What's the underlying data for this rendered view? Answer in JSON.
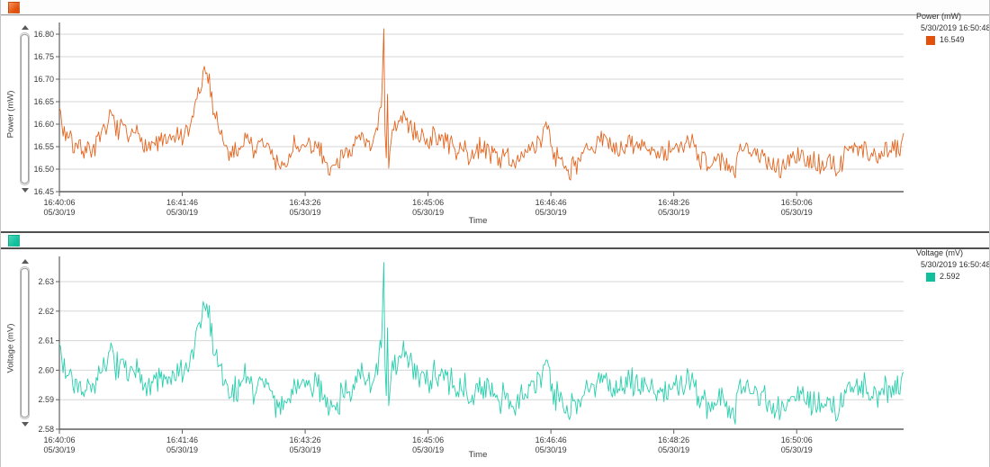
{
  "panels": [
    {
      "name": "power",
      "y_axis_title": "Power (mW)",
      "x_axis_title": "Time",
      "icon_gradient": "linear-gradient(135deg,#f5935d 0%,#e2500b 70%)",
      "legend": {
        "title": "Power (mW)",
        "timestamp": "5/30/2019 16:50:48",
        "value": "16.549",
        "swatch": "#e2500b"
      }
    },
    {
      "name": "voltage",
      "y_axis_title": "Voltage (mV)",
      "x_axis_title": "Time",
      "icon_gradient": "linear-gradient(135deg,#4cd9b8 0%,#10bf9c 70%)",
      "legend": {
        "title": "Voltage (mV)",
        "timestamp": "5/30/2019 16:50:48",
        "value": "2.592",
        "swatch": "#12bf9d"
      }
    }
  ],
  "chart_data": [
    {
      "type": "line",
      "series_name": "Power (mW)",
      "line_color": "#e4641e",
      "legend_value_at_cursor": 16.549,
      "cursor_timestamp": "5/30/2019 16:50:48",
      "duration_s": 687,
      "grid": "horizontal",
      "x_axis": {
        "label": "Time",
        "tick_interval_s": 100,
        "ticks": [
          {
            "time": "16:40:06",
            "date": "05/30/19"
          },
          {
            "time": "16:41:46",
            "date": "05/30/19"
          },
          {
            "time": "16:43:26",
            "date": "05/30/19"
          },
          {
            "time": "16:45:06",
            "date": "05/30/19"
          },
          {
            "time": "16:46:46",
            "date": "05/30/19"
          },
          {
            "time": "16:48:26",
            "date": "05/30/19"
          },
          {
            "time": "16:50:06",
            "date": "05/30/19"
          }
        ]
      },
      "y_axis": {
        "label": "Power (mW)",
        "min": 16.45,
        "max": 16.8225,
        "ticks": [
          "16.45",
          "16.50",
          "16.55",
          "16.60",
          "16.65",
          "16.70",
          "16.75",
          "16.80"
        ]
      },
      "signal": {
        "seed": 7,
        "baseline": 16.56,
        "fast_noise": 0.022,
        "wander_step": 0.01,
        "wander_phi": 0.95,
        "wander_max": 0.034,
        "clip": [
          16.457,
          16.812
        ],
        "envelope_points": [
          [
            0,
            16.665
          ],
          [
            1,
            16.62
          ],
          [
            3,
            16.585
          ],
          [
            10,
            16.575
          ],
          [
            20,
            16.565
          ],
          [
            35,
            16.585
          ],
          [
            45,
            16.6
          ],
          [
            48,
            16.572
          ],
          [
            58,
            16.56
          ],
          [
            68,
            16.572
          ],
          [
            80,
            16.555
          ],
          [
            92,
            16.565
          ],
          [
            100,
            16.56
          ],
          [
            105,
            16.572
          ],
          [
            110,
            16.628
          ],
          [
            114,
            16.668
          ],
          [
            119,
            16.703
          ],
          [
            123,
            16.648
          ],
          [
            127,
            16.598
          ],
          [
            133,
            16.548
          ],
          [
            140,
            16.532
          ],
          [
            150,
            16.558
          ],
          [
            160,
            16.552
          ],
          [
            170,
            16.542
          ],
          [
            180,
            16.508
          ],
          [
            184,
            16.49
          ],
          [
            191,
            16.548
          ],
          [
            200,
            16.542
          ],
          [
            210,
            16.528
          ],
          [
            220,
            16.502
          ],
          [
            226,
            16.522
          ],
          [
            234,
            16.565
          ],
          [
            244,
            16.568
          ],
          [
            254,
            16.572
          ],
          [
            259,
            16.588
          ],
          [
            262,
            16.63
          ],
          [
            263,
            16.72
          ],
          [
            264,
            16.81
          ],
          [
            265,
            16.58
          ],
          [
            266,
            16.5
          ],
          [
            267,
            16.64
          ],
          [
            268,
            16.47
          ],
          [
            269,
            16.52
          ],
          [
            270,
            16.56
          ],
          [
            276,
            16.582
          ],
          [
            285,
            16.595
          ],
          [
            295,
            16.588
          ],
          [
            305,
            16.572
          ],
          [
            315,
            16.552
          ],
          [
            325,
            16.545
          ],
          [
            335,
            16.532
          ],
          [
            345,
            16.54
          ],
          [
            355,
            16.53
          ],
          [
            365,
            16.525
          ],
          [
            378,
            16.532
          ],
          [
            390,
            16.552
          ],
          [
            397,
            16.608
          ],
          [
            403,
            16.548
          ],
          [
            415,
            16.53
          ],
          [
            430,
            16.545
          ],
          [
            445,
            16.552
          ],
          [
            460,
            16.538
          ],
          [
            475,
            16.545
          ],
          [
            490,
            16.528
          ],
          [
            505,
            16.518
          ],
          [
            515,
            16.548
          ],
          [
            530,
            16.542
          ],
          [
            540,
            16.518
          ],
          [
            549,
            16.478
          ],
          [
            556,
            16.53
          ],
          [
            566,
            16.55
          ],
          [
            576,
            16.538
          ],
          [
            586,
            16.528
          ],
          [
            596,
            16.545
          ],
          [
            606,
            16.53
          ],
          [
            616,
            16.518
          ],
          [
            626,
            16.53
          ],
          [
            634,
            16.502
          ],
          [
            645,
            16.545
          ],
          [
            656,
            16.552
          ],
          [
            668,
            16.54
          ],
          [
            678,
            16.545
          ],
          [
            684,
            16.555
          ],
          [
            687,
            16.6
          ]
        ]
      }
    },
    {
      "type": "line",
      "series_name": "Voltage (mV)",
      "line_color": "#27cfad",
      "legend_value_at_cursor": 2.592,
      "cursor_timestamp": "5/30/2019 16:50:48",
      "duration_s": 687,
      "grid": "horizontal",
      "x_axis": {
        "label": "Time",
        "tick_interval_s": 100,
        "ticks": [
          {
            "time": "16:40:06",
            "date": "05/30/19"
          },
          {
            "time": "16:41:46",
            "date": "05/30/19"
          },
          {
            "time": "16:43:26",
            "date": "05/30/19"
          },
          {
            "time": "16:45:06",
            "date": "05/30/19"
          },
          {
            "time": "16:46:46",
            "date": "05/30/19"
          },
          {
            "time": "16:48:26",
            "date": "05/30/19"
          },
          {
            "time": "16:50:06",
            "date": "05/30/19"
          }
        ]
      },
      "y_axis": {
        "label": "Voltage (mV)",
        "min": 2.58,
        "max": 2.6384,
        "ticks": [
          "2.58",
          "2.59",
          "2.60",
          "2.61",
          "2.62",
          "2.63"
        ]
      },
      "derived": {
        "from": 0,
        "base_power": 16.56,
        "base_value": 2.5965,
        "scale": 0.163,
        "extra_noise": 0.0025,
        "seed": 11,
        "clip": [
          2.581,
          2.6365
        ]
      }
    }
  ]
}
